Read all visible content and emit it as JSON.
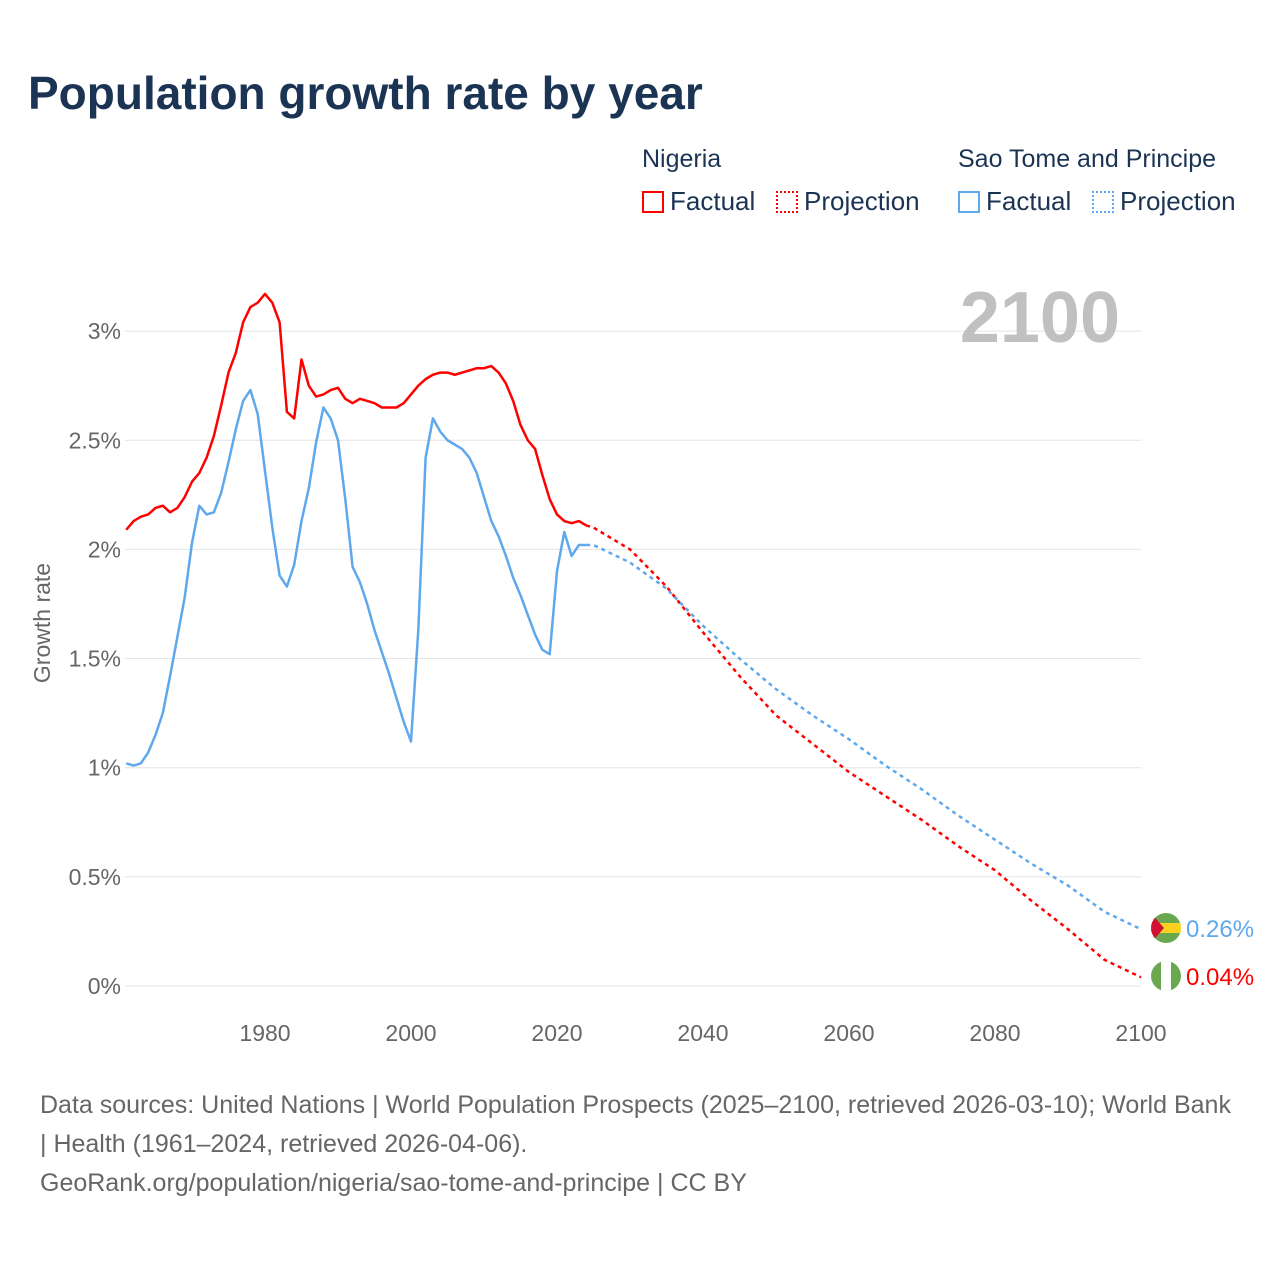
{
  "title": "Population growth rate by year",
  "legend": {
    "groups": [
      {
        "name": "Nigeria",
        "color": "#ff0000",
        "factual": "Factual",
        "projection": "Projection"
      },
      {
        "name": "Sao Tome and Principe",
        "color": "#5fa8ec",
        "factual": "Factual",
        "projection": "Projection"
      }
    ]
  },
  "year_label": "2100",
  "footer": {
    "line1": "Data sources: United Nations | World Population Prospects (2025–2100, retrieved 2026-03-10); World Bank | Health (1961–2024, retrieved 2026-04-06).",
    "line2": "GeoRank.org/population/nigeria/sao-tome-and-principe | CC BY"
  },
  "chart_data": {
    "type": "line",
    "title": "Population growth rate by year",
    "xlabel": "",
    "ylabel": "Growth rate",
    "xlim": [
      1961,
      2100
    ],
    "ylim": [
      0,
      3.2
    ],
    "xticks": [
      {
        "v": 1980,
        "label": "1980"
      },
      {
        "v": 2000,
        "label": "2000"
      },
      {
        "v": 2020,
        "label": "2020"
      },
      {
        "v": 2040,
        "label": "2040"
      },
      {
        "v": 2060,
        "label": "2060"
      },
      {
        "v": 2080,
        "label": "2080"
      },
      {
        "v": 2100,
        "label": "2100"
      }
    ],
    "yticks": [
      {
        "v": 0,
        "label": "0%"
      },
      {
        "v": 0.5,
        "label": "0.5%"
      },
      {
        "v": 1,
        "label": "1%"
      },
      {
        "v": 1.5,
        "label": "1.5%"
      },
      {
        "v": 2,
        "label": "2%"
      },
      {
        "v": 2.5,
        "label": "2.5%"
      },
      {
        "v": 3,
        "label": "3%"
      }
    ],
    "series": [
      {
        "name": "Nigeria",
        "color": "#ff0000",
        "end_label": "0.04%",
        "factual": {
          "start": 1961,
          "values": [
            2.09,
            2.13,
            2.15,
            2.16,
            2.19,
            2.2,
            2.17,
            2.19,
            2.24,
            2.31,
            2.35,
            2.42,
            2.52,
            2.66,
            2.81,
            2.9,
            3.04,
            3.11,
            3.13,
            3.17,
            3.13,
            3.04,
            2.63,
            2.6,
            2.87,
            2.75,
            2.7,
            2.71,
            2.73,
            2.74,
            2.69,
            2.67,
            2.69,
            2.68,
            2.67,
            2.65,
            2.65,
            2.65,
            2.67,
            2.71,
            2.75,
            2.78,
            2.8,
            2.81,
            2.81,
            2.8,
            2.81,
            2.82,
            2.83,
            2.83,
            2.84,
            2.81,
            2.76,
            2.68,
            2.57,
            2.5,
            2.46,
            2.34,
            2.23,
            2.16,
            2.13,
            2.12,
            2.13,
            2.11
          ]
        },
        "projection": {
          "years": [
            2024,
            2025,
            2030,
            2035,
            2040,
            2045,
            2050,
            2055,
            2060,
            2065,
            2070,
            2075,
            2080,
            2085,
            2090,
            2095,
            2100
          ],
          "values": [
            2.11,
            2.1,
            2.0,
            1.83,
            1.62,
            1.42,
            1.24,
            1.11,
            0.98,
            0.87,
            0.76,
            0.64,
            0.53,
            0.39,
            0.26,
            0.12,
            0.04
          ]
        }
      },
      {
        "name": "Sao Tome and Principe",
        "color": "#5fa8ec",
        "end_label": "0.26%",
        "factual": {
          "start": 1961,
          "values": [
            1.02,
            1.01,
            1.02,
            1.07,
            1.15,
            1.25,
            1.42,
            1.6,
            1.78,
            2.03,
            2.2,
            2.16,
            2.17,
            2.26,
            2.4,
            2.55,
            2.68,
            2.73,
            2.62,
            2.36,
            2.1,
            1.88,
            1.83,
            1.93,
            2.13,
            2.28,
            2.49,
            2.65,
            2.6,
            2.5,
            2.23,
            1.92,
            1.85,
            1.75,
            1.63,
            1.53,
            1.43,
            1.32,
            1.21,
            1.12,
            1.63,
            2.42,
            2.6,
            2.54,
            2.5,
            2.48,
            2.46,
            2.42,
            2.35,
            2.24,
            2.13,
            2.06,
            1.97,
            1.87,
            1.79,
            1.7,
            1.61,
            1.54,
            1.52,
            1.9,
            2.08,
            1.97,
            2.02,
            2.02
          ]
        },
        "projection": {
          "years": [
            2024,
            2025,
            2030,
            2035,
            2040,
            2045,
            2050,
            2055,
            2060,
            2065,
            2070,
            2075,
            2080,
            2085,
            2090,
            2095,
            2100
          ],
          "values": [
            2.02,
            2.02,
            1.94,
            1.82,
            1.65,
            1.5,
            1.36,
            1.24,
            1.13,
            1.01,
            0.9,
            0.78,
            0.67,
            0.56,
            0.46,
            0.34,
            0.26
          ]
        }
      }
    ]
  }
}
